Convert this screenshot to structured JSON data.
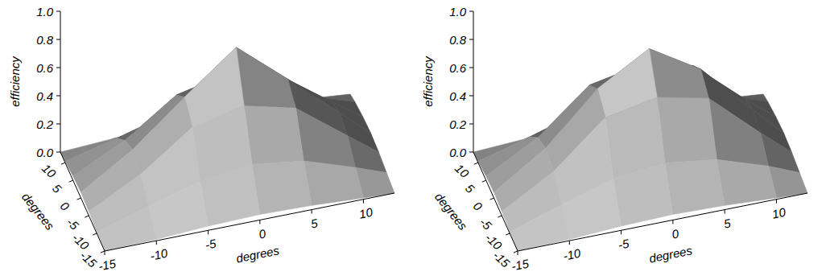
{
  "chart_data": [
    {
      "type": "surface",
      "color": "#9a9a9a",
      "xlabel": "degrees",
      "ylabel": "degrees",
      "zlabel": "efficiency",
      "x": [
        -15,
        -10,
        -5,
        0,
        5,
        10,
        13
      ],
      "y": [
        -15,
        -10,
        -5,
        0,
        5,
        10,
        13
      ],
      "z": [
        [
          0,
          0.01,
          0.03,
          0.04,
          0.03,
          0.01,
          0
        ],
        [
          0.01,
          0.12,
          0.22,
          0.27,
          0.22,
          0.1,
          0.02
        ],
        [
          0.03,
          0.22,
          0.48,
          0.56,
          0.47,
          0.2,
          0.04
        ],
        [
          0.04,
          0.27,
          0.57,
          0.85,
          0.55,
          0.24,
          0.05
        ],
        [
          0.03,
          0.21,
          0.46,
          0.54,
          0.45,
          0.19,
          0.04
        ],
        [
          0.01,
          0.1,
          0.2,
          0.25,
          0.2,
          0.09,
          0.02
        ],
        [
          0,
          0.02,
          0.04,
          0.05,
          0.04,
          0.02,
          0
        ]
      ],
      "xlim": [
        -15,
        13
      ],
      "ylim": [
        -15,
        13
      ],
      "zlim": [
        0,
        1
      ],
      "xticks": [
        -15,
        -10,
        -5,
        0,
        5,
        10
      ],
      "yticks": [
        -15,
        -10,
        -5,
        0,
        5,
        10
      ],
      "zticks": [
        {
          "value": 0,
          "label": "0.0"
        },
        {
          "value": 0.2,
          "label": "0.2"
        },
        {
          "value": 0.4,
          "label": "0.4"
        },
        {
          "value": 0.6,
          "label": "0.6"
        },
        {
          "value": 0.8,
          "label": "0.8"
        },
        {
          "value": 1,
          "label": "1.0"
        }
      ]
    },
    {
      "type": "surface",
      "color": "#9a9a9a",
      "xlabel": "degrees",
      "ylabel": "degrees",
      "zlabel": "efficiency",
      "x": [
        -15,
        -10,
        -5,
        0,
        5,
        10,
        13
      ],
      "y": [
        -15,
        -10,
        -5,
        0,
        5,
        10,
        13
      ],
      "z": [
        [
          0,
          0.01,
          0.03,
          0.04,
          0.03,
          0.01,
          0
        ],
        [
          0.01,
          0.13,
          0.24,
          0.28,
          0.23,
          0.11,
          0.02
        ],
        [
          0.03,
          0.24,
          0.55,
          0.62,
          0.54,
          0.22,
          0.04
        ],
        [
          0.04,
          0.28,
          0.63,
          0.84,
          0.62,
          0.26,
          0.05
        ],
        [
          0.03,
          0.23,
          0.53,
          0.6,
          0.52,
          0.21,
          0.04
        ],
        [
          0.01,
          0.11,
          0.22,
          0.26,
          0.21,
          0.1,
          0.02
        ],
        [
          0,
          0.02,
          0.04,
          0.05,
          0.04,
          0.02,
          0
        ]
      ],
      "xlim": [
        -15,
        13
      ],
      "ylim": [
        -15,
        13
      ],
      "zlim": [
        0,
        1
      ],
      "xticks": [
        -15,
        -10,
        -5,
        0,
        5,
        10
      ],
      "yticks": [
        -15,
        -10,
        -5,
        0,
        5,
        10
      ],
      "zticks": [
        {
          "value": 0,
          "label": "0.0"
        },
        {
          "value": 0.2,
          "label": "0.2"
        },
        {
          "value": 0.4,
          "label": "0.4"
        },
        {
          "value": 0.6,
          "label": "0.6"
        },
        {
          "value": 0.8,
          "label": "0.8"
        },
        {
          "value": 1,
          "label": "1.0"
        }
      ]
    }
  ]
}
